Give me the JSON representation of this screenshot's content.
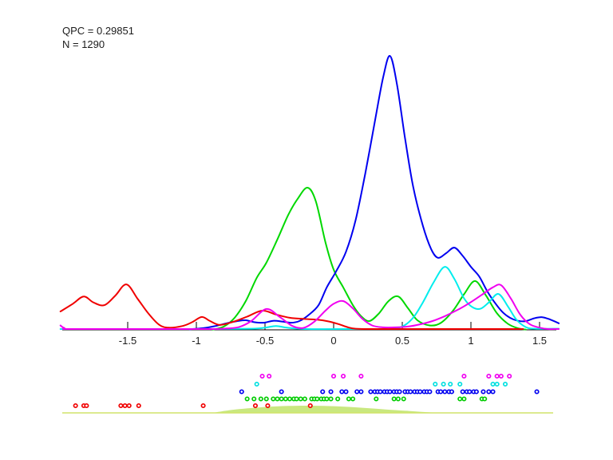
{
  "annotations": {
    "qpc": "QPC = 0.29851",
    "n": "N = 1290"
  },
  "chart_data": {
    "type": "line",
    "title": "",
    "xlabel": "",
    "ylabel": "",
    "xlim": [
      -1.99,
      1.64
    ],
    "ylim": [
      0,
      1.08
    ],
    "grid": false,
    "legend": "none",
    "x_axis": {
      "tick_values": [
        -1.5,
        -1,
        -0.5,
        0,
        0.5,
        1,
        1.5
      ],
      "tick_labels": [
        "-1.5",
        "-1",
        "-0.5",
        "0",
        "0.5",
        "1",
        "1.5"
      ]
    },
    "series": [
      {
        "name": "cluster-green-density",
        "color": "#00d800",
        "points": [
          [
            -0.88,
            0.001
          ],
          [
            -0.8,
            0.012
          ],
          [
            -0.72,
            0.045
          ],
          [
            -0.64,
            0.105
          ],
          [
            -0.56,
            0.19
          ],
          [
            -0.49,
            0.245
          ],
          [
            -0.41,
            0.33
          ],
          [
            -0.33,
            0.42
          ],
          [
            -0.26,
            0.48
          ],
          [
            -0.19,
            0.519
          ],
          [
            -0.13,
            0.47
          ],
          [
            -0.06,
            0.32
          ],
          [
            0.0,
            0.22
          ],
          [
            0.07,
            0.155
          ],
          [
            0.14,
            0.09
          ],
          [
            0.2,
            0.05
          ],
          [
            0.26,
            0.032
          ],
          [
            0.33,
            0.06
          ],
          [
            0.4,
            0.105
          ],
          [
            0.47,
            0.122
          ],
          [
            0.54,
            0.08
          ],
          [
            0.61,
            0.035
          ],
          [
            0.7,
            0.016
          ],
          [
            0.78,
            0.025
          ],
          [
            0.87,
            0.07
          ],
          [
            0.95,
            0.13
          ],
          [
            1.03,
            0.178
          ],
          [
            1.11,
            0.125
          ],
          [
            1.19,
            0.06
          ],
          [
            1.27,
            0.022
          ],
          [
            1.34,
            0.006
          ],
          [
            1.4,
            0.001
          ]
        ]
      },
      {
        "name": "cluster-blue-density",
        "color": "#0000f0",
        "points": [
          [
            -1.05,
            0.002
          ],
          [
            -0.95,
            0.006
          ],
          [
            -0.86,
            0.014
          ],
          [
            -0.78,
            0.024
          ],
          [
            -0.7,
            0.032
          ],
          [
            -0.64,
            0.035
          ],
          [
            -0.58,
            0.028
          ],
          [
            -0.51,
            0.026
          ],
          [
            -0.44,
            0.033
          ],
          [
            -0.37,
            0.03
          ],
          [
            -0.31,
            0.026
          ],
          [
            -0.25,
            0.032
          ],
          [
            -0.18,
            0.055
          ],
          [
            -0.11,
            0.09
          ],
          [
            -0.05,
            0.155
          ],
          [
            0.02,
            0.215
          ],
          [
            0.09,
            0.285
          ],
          [
            0.16,
            0.4
          ],
          [
            0.23,
            0.57
          ],
          [
            0.3,
            0.76
          ],
          [
            0.36,
            0.92
          ],
          [
            0.41,
            1.0
          ],
          [
            0.46,
            0.9
          ],
          [
            0.52,
            0.7
          ],
          [
            0.58,
            0.52
          ],
          [
            0.65,
            0.38
          ],
          [
            0.71,
            0.295
          ],
          [
            0.76,
            0.263
          ],
          [
            0.82,
            0.28
          ],
          [
            0.88,
            0.3
          ],
          [
            0.94,
            0.27
          ],
          [
            1.0,
            0.23
          ],
          [
            1.06,
            0.195
          ],
          [
            1.12,
            0.14
          ],
          [
            1.18,
            0.095
          ],
          [
            1.24,
            0.06
          ],
          [
            1.31,
            0.038
          ],
          [
            1.39,
            0.031
          ],
          [
            1.46,
            0.042
          ],
          [
            1.52,
            0.046
          ],
          [
            1.58,
            0.037
          ],
          [
            1.64,
            0.024
          ]
        ]
      },
      {
        "name": "cluster-cyan-density",
        "color": "#00eded",
        "points": [
          [
            -1.99,
            0.003
          ],
          [
            -1.0,
            0.003
          ],
          [
            -0.6,
            0.004
          ],
          [
            -0.5,
            0.008
          ],
          [
            -0.42,
            0.014
          ],
          [
            -0.34,
            0.008
          ],
          [
            -0.2,
            0.003
          ],
          [
            0.2,
            0.003
          ],
          [
            0.4,
            0.004
          ],
          [
            0.5,
            0.012
          ],
          [
            0.58,
            0.045
          ],
          [
            0.65,
            0.1
          ],
          [
            0.73,
            0.175
          ],
          [
            0.81,
            0.23
          ],
          [
            0.88,
            0.185
          ],
          [
            0.95,
            0.115
          ],
          [
            1.01,
            0.083
          ],
          [
            1.07,
            0.077
          ],
          [
            1.13,
            0.1
          ],
          [
            1.2,
            0.131
          ],
          [
            1.27,
            0.085
          ],
          [
            1.33,
            0.038
          ],
          [
            1.4,
            0.01
          ],
          [
            1.47,
            0.004
          ],
          [
            1.64,
            0.004
          ]
        ]
      },
      {
        "name": "cluster-red-density",
        "color": "#f00000",
        "points": [
          [
            -1.99,
            0.067
          ],
          [
            -1.9,
            0.095
          ],
          [
            -1.82,
            0.122
          ],
          [
            -1.75,
            0.1
          ],
          [
            -1.67,
            0.09
          ],
          [
            -1.59,
            0.125
          ],
          [
            -1.51,
            0.166
          ],
          [
            -1.43,
            0.115
          ],
          [
            -1.35,
            0.06
          ],
          [
            -1.27,
            0.018
          ],
          [
            -1.2,
            0.008
          ],
          [
            -1.1,
            0.014
          ],
          [
            -1.03,
            0.028
          ],
          [
            -0.96,
            0.047
          ],
          [
            -0.9,
            0.032
          ],
          [
            -0.83,
            0.018
          ],
          [
            -0.74,
            0.028
          ],
          [
            -0.63,
            0.048
          ],
          [
            -0.52,
            0.07
          ],
          [
            -0.42,
            0.056
          ],
          [
            -0.32,
            0.044
          ],
          [
            -0.22,
            0.04
          ],
          [
            -0.12,
            0.037
          ],
          [
            -0.04,
            0.031
          ],
          [
            0.04,
            0.02
          ],
          [
            0.1,
            0.01
          ],
          [
            0.16,
            0.004
          ],
          [
            0.3,
            0.003
          ],
          [
            0.8,
            0.003
          ],
          [
            1.38,
            0.003
          ]
        ]
      },
      {
        "name": "cluster-magenta-density",
        "color": "#f000f0",
        "points": [
          [
            -1.99,
            0.016
          ],
          [
            -1.96,
            0.006
          ],
          [
            -1.9,
            0.003
          ],
          [
            -1.2,
            0.003
          ],
          [
            -0.9,
            0.003
          ],
          [
            -0.78,
            0.005
          ],
          [
            -0.69,
            0.01
          ],
          [
            -0.6,
            0.032
          ],
          [
            -0.49,
            0.076
          ],
          [
            -0.39,
            0.046
          ],
          [
            -0.3,
            0.014
          ],
          [
            -0.22,
            0.007
          ],
          [
            -0.14,
            0.03
          ],
          [
            -0.06,
            0.07
          ],
          [
            0.0,
            0.095
          ],
          [
            0.07,
            0.105
          ],
          [
            0.14,
            0.078
          ],
          [
            0.21,
            0.04
          ],
          [
            0.28,
            0.016
          ],
          [
            0.36,
            0.009
          ],
          [
            0.45,
            0.009
          ],
          [
            0.54,
            0.012
          ],
          [
            0.63,
            0.02
          ],
          [
            0.72,
            0.032
          ],
          [
            0.81,
            0.05
          ],
          [
            0.9,
            0.072
          ],
          [
            0.99,
            0.098
          ],
          [
            1.08,
            0.128
          ],
          [
            1.16,
            0.155
          ],
          [
            1.22,
            0.163
          ],
          [
            1.29,
            0.115
          ],
          [
            1.36,
            0.055
          ],
          [
            1.43,
            0.02
          ],
          [
            1.5,
            0.008
          ],
          [
            1.56,
            0.003
          ],
          [
            1.64,
            0.003
          ]
        ]
      }
    ],
    "rug": [
      {
        "name": "rug-magenta",
        "color": "#f000f0",
        "row": 0,
        "x": [
          -0.52,
          -0.47,
          0.0,
          0.07,
          0.2,
          0.95,
          1.13,
          1.19,
          1.22,
          1.28
        ]
      },
      {
        "name": "rug-cyan",
        "color": "#00e0e0",
        "row": 1,
        "x": [
          -0.56,
          0.74,
          0.8,
          0.85,
          0.92,
          1.16,
          1.19,
          1.25
        ]
      },
      {
        "name": "rug-blue",
        "color": "#0000f0",
        "row": 2,
        "x": [
          -0.67,
          -0.38,
          -0.08,
          -0.02,
          0.06,
          0.09,
          0.17,
          0.2,
          0.27,
          0.3,
          0.32,
          0.34,
          0.37,
          0.39,
          0.41,
          0.44,
          0.46,
          0.48,
          0.52,
          0.54,
          0.56,
          0.59,
          0.61,
          0.63,
          0.66,
          0.68,
          0.7,
          0.76,
          0.78,
          0.81,
          0.84,
          0.86,
          0.94,
          0.97,
          0.99,
          1.02,
          1.04,
          1.09,
          1.13,
          1.16,
          1.48
        ]
      },
      {
        "name": "rug-green",
        "color": "#00cc00",
        "row": 3,
        "x": [
          -0.63,
          -0.58,
          -0.53,
          -0.49,
          -0.44,
          -0.41,
          -0.38,
          -0.35,
          -0.32,
          -0.29,
          -0.27,
          -0.24,
          -0.21,
          -0.16,
          -0.14,
          -0.12,
          -0.09,
          -0.07,
          -0.05,
          -0.02,
          0.03,
          0.11,
          0.14,
          0.31,
          0.44,
          0.47,
          0.51,
          0.92,
          0.95,
          1.08,
          1.1
        ]
      },
      {
        "name": "rug-red",
        "color": "#f00000",
        "row": 4,
        "x": [
          -1.88,
          -1.82,
          -1.8,
          -1.55,
          -1.52,
          -1.49,
          -1.42,
          -0.95,
          -0.57,
          -0.48,
          -0.17
        ]
      }
    ],
    "consensus_density": {
      "fill_color": "#c9e87f",
      "line_color": "#d0e46a",
      "points": [
        [
          -0.9,
          0.0
        ],
        [
          -0.74,
          0.45
        ],
        [
          -0.52,
          0.8
        ],
        [
          -0.33,
          0.97
        ],
        [
          -0.16,
          1.0
        ],
        [
          0.02,
          0.92
        ],
        [
          0.2,
          0.74
        ],
        [
          0.37,
          0.52
        ],
        [
          0.55,
          0.3
        ],
        [
          0.7,
          0.12
        ],
        [
          0.81,
          0.02
        ],
        [
          0.88,
          0.0
        ]
      ]
    }
  }
}
